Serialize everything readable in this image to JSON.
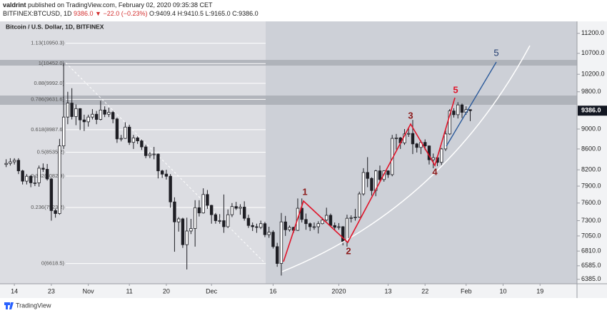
{
  "chart_data": {
    "type": "candlestick",
    "header": {
      "user": "valdrint",
      "published": " published on TradingView.com, February 02, 2020 09:35:38 CET",
      "symbol": "BITFINEX:BTCUSD, 1D",
      "change": " 9386.0 ▼ −22.0 (−0.23%)",
      "ohlc": " O:9409.4 H:9410.5 L:9165.0 C:9386.0"
    },
    "title": "Bitcoin / U.S. Dollar, 1D, BITFINEX",
    "log_scale": true,
    "up_color": "#ffffff",
    "down_color": "#1e1e24",
    "wick_color": "#1e1e24",
    "ylim": [
      6320,
      11510
    ],
    "yticks": [
      {
        "value": 6385,
        "label": "6385.0"
      },
      {
        "value": 6585,
        "label": "6585.0"
      },
      {
        "value": 6810,
        "label": "6810.0"
      },
      {
        "value": 7050,
        "label": "7050.0"
      },
      {
        "value": 7300,
        "label": "7300.0"
      },
      {
        "value": 7600,
        "label": "7600.0"
      },
      {
        "value": 7900,
        "label": "7900.0"
      },
      {
        "value": 8200,
        "label": "8200.0"
      },
      {
        "value": 8600,
        "label": "8600.0"
      },
      {
        "value": 9000,
        "label": "9000.0"
      },
      {
        "value": 9800,
        "label": "9800.0"
      },
      {
        "value": 10200,
        "label": "10200.0"
      },
      {
        "value": 10700,
        "label": "10700.0"
      },
      {
        "value": 11200,
        "label": "11200.0"
      }
    ],
    "xlim": [
      -1.5,
      139
    ],
    "xticks": [
      {
        "value": 2,
        "label": "14"
      },
      {
        "value": 11,
        "label": "23"
      },
      {
        "value": 20,
        "label": "Nov"
      },
      {
        "value": 30,
        "label": "11"
      },
      {
        "value": 39,
        "label": "20"
      },
      {
        "value": 50,
        "label": "Dec"
      },
      {
        "value": 65,
        "label": "16"
      },
      {
        "value": 81,
        "label": "2020"
      },
      {
        "value": 93,
        "label": "13"
      },
      {
        "value": 102,
        "label": "22"
      },
      {
        "value": 112,
        "label": "Feb"
      },
      {
        "value": 121,
        "label": "10"
      },
      {
        "value": 130,
        "label": "19"
      }
    ],
    "last_price": {
      "value": 9386,
      "label": "9386.0"
    },
    "fib_levels": [
      {
        "value": 10950.3,
        "label": "1.13(10950.3)"
      },
      {
        "value": 10452.0,
        "label": "1(10452.0)"
      },
      {
        "value": 9992.0,
        "label": "0.88(9992.0)"
      },
      {
        "value": 9631.6,
        "label": "0.786(9631.6)"
      },
      {
        "value": 8987.6,
        "label": "0.618(8987.6)"
      },
      {
        "value": 8535.2,
        "label": "0.5(8535.2)"
      },
      {
        "value": 8082.9,
        "label": "0.382(8082.9)"
      },
      {
        "value": 7523.2,
        "label": "0.236(7523.2)"
      },
      {
        "value": 6618.5,
        "label": "0(6618.5)"
      }
    ],
    "wave_labels": [
      "1",
      "2",
      "3",
      "4",
      "5",
      "5"
    ],
    "footer": "TradingView",
    "ohlc": [
      [
        8300,
        8400,
        8250,
        8320
      ],
      [
        8320,
        8420,
        8280,
        8350
      ],
      [
        8350,
        8420,
        8300,
        8380
      ],
      [
        8380,
        8420,
        8120,
        8180
      ],
      [
        8180,
        8200,
        7930,
        7990
      ],
      [
        7990,
        8120,
        7930,
        8080
      ],
      [
        8080,
        8100,
        7880,
        7960
      ],
      [
        7960,
        8100,
        7900,
        7960
      ],
      [
        7960,
        8280,
        7890,
        8230
      ],
      [
        8230,
        8320,
        8160,
        8210
      ],
      [
        8210,
        8310,
        8000,
        8030
      ],
      [
        8030,
        8050,
        7300,
        7470
      ],
      [
        7470,
        7500,
        7350,
        7420
      ],
      [
        7420,
        8800,
        7400,
        8660
      ],
      [
        8660,
        10460,
        8600,
        9250
      ],
      [
        9250,
        9800,
        9100,
        9550
      ],
      [
        9550,
        9880,
        9200,
        9260
      ],
      [
        9260,
        9520,
        9080,
        9430
      ],
      [
        9430,
        9440,
        8980,
        9190
      ],
      [
        9190,
        9300,
        8960,
        9150
      ],
      [
        9150,
        9300,
        9050,
        9250
      ],
      [
        9250,
        9420,
        9200,
        9310
      ],
      [
        9310,
        9380,
        9100,
        9200
      ],
      [
        9200,
        9600,
        9180,
        9400
      ],
      [
        9400,
        9480,
        9250,
        9310
      ],
      [
        9310,
        9450,
        9250,
        9350
      ],
      [
        9350,
        9380,
        9120,
        9210
      ],
      [
        9210,
        9240,
        8720,
        8800
      ],
      [
        8800,
        8880,
        8750,
        8810
      ],
      [
        8810,
        9140,
        8800,
        9040
      ],
      [
        9040,
        9090,
        8680,
        8730
      ],
      [
        8730,
        8880,
        8600,
        8820
      ],
      [
        8820,
        8850,
        8700,
        8760
      ],
      [
        8760,
        8790,
        8580,
        8640
      ],
      [
        8640,
        8680,
        8420,
        8470
      ],
      [
        8470,
        8540,
        8420,
        8500
      ],
      [
        8500,
        8640,
        8400,
        8500
      ],
      [
        8500,
        8510,
        8040,
        8180
      ],
      [
        8180,
        8200,
        8050,
        8120
      ],
      [
        8120,
        8200,
        8020,
        8080
      ],
      [
        8080,
        8120,
        7520,
        7620
      ],
      [
        7620,
        7700,
        6800,
        7280
      ],
      [
        7280,
        7360,
        7120,
        7330
      ],
      [
        7330,
        7350,
        6860,
        6910
      ],
      [
        6910,
        7350,
        6530,
        7130
      ],
      [
        7130,
        7330,
        7080,
        7170
      ],
      [
        7170,
        7650,
        6880,
        7520
      ],
      [
        7520,
        7650,
        7370,
        7430
      ],
      [
        7430,
        7860,
        7420,
        7750
      ],
      [
        7750,
        7830,
        7500,
        7560
      ],
      [
        7560,
        7570,
        7250,
        7400
      ],
      [
        7400,
        7430,
        7250,
        7300
      ],
      [
        7300,
        7410,
        7250,
        7300
      ],
      [
        7300,
        7750,
        7100,
        7200
      ],
      [
        7200,
        7490,
        7180,
        7400
      ],
      [
        7400,
        7600,
        7360,
        7540
      ],
      [
        7540,
        7620,
        7480,
        7510
      ],
      [
        7510,
        7580,
        7400,
        7530
      ],
      [
        7530,
        7630,
        7300,
        7340
      ],
      [
        7340,
        7400,
        7180,
        7220
      ],
      [
        7220,
        7270,
        7130,
        7200
      ],
      [
        7200,
        7250,
        7100,
        7190
      ],
      [
        7190,
        7300,
        7160,
        7250
      ],
      [
        7250,
        7280,
        7030,
        7070
      ],
      [
        7070,
        7200,
        7020,
        7110
      ],
      [
        7110,
        7140,
        6850,
        6880
      ],
      [
        6880,
        6940,
        6570,
        6620
      ],
      [
        6620,
        7430,
        6440,
        7280
      ],
      [
        7280,
        7380,
        7050,
        7150
      ],
      [
        7150,
        7220,
        7120,
        7190
      ],
      [
        7190,
        7200,
        7100,
        7140
      ],
      [
        7140,
        7680,
        7130,
        7510
      ],
      [
        7510,
        7680,
        7270,
        7320
      ],
      [
        7320,
        7420,
        7150,
        7250
      ],
      [
        7250,
        7270,
        7130,
        7200
      ],
      [
        7200,
        7270,
        7150,
        7200
      ],
      [
        7200,
        7290,
        7090,
        7250
      ],
      [
        7250,
        7350,
        7240,
        7310
      ],
      [
        7310,
        7520,
        7290,
        7390
      ],
      [
        7390,
        7420,
        7200,
        7220
      ],
      [
        7220,
        7270,
        7140,
        7190
      ],
      [
        7190,
        7260,
        7150,
        7200
      ],
      [
        7200,
        7210,
        6900,
        6960
      ],
      [
        6960,
        7400,
        6880,
        7340
      ],
      [
        7340,
        7390,
        7270,
        7350
      ],
      [
        7350,
        7500,
        7300,
        7360
      ],
      [
        7360,
        7800,
        7350,
        7760
      ],
      [
        7760,
        8230,
        7730,
        8150
      ],
      [
        8150,
        8440,
        7880,
        8040
      ],
      [
        8040,
        8060,
        7730,
        7820
      ],
      [
        7820,
        8200,
        7720,
        8180
      ],
      [
        8180,
        8280,
        7980,
        8020
      ],
      [
        8020,
        8190,
        7980,
        8180
      ],
      [
        8180,
        8190,
        8050,
        8110
      ],
      [
        8110,
        8880,
        8080,
        8810
      ],
      [
        8810,
        8900,
        8590,
        8820
      ],
      [
        8820,
        8840,
        8600,
        8720
      ],
      [
        8720,
        9000,
        8680,
        8900
      ],
      [
        8900,
        9020,
        8840,
        8910
      ],
      [
        8910,
        9190,
        8500,
        8700
      ],
      [
        8700,
        8720,
        8530,
        8630
      ],
      [
        8630,
        8770,
        8500,
        8730
      ],
      [
        8730,
        8790,
        8580,
        8660
      ],
      [
        8660,
        8670,
        8300,
        8390
      ],
      [
        8390,
        8510,
        8230,
        8430
      ],
      [
        8430,
        8450,
        8270,
        8340
      ],
      [
        8340,
        8620,
        8290,
        8600
      ],
      [
        8600,
        8980,
        8560,
        8900
      ],
      [
        8900,
        9420,
        8880,
        9380
      ],
      [
        9380,
        9440,
        9240,
        9300
      ],
      [
        9300,
        9570,
        9220,
        9510
      ],
      [
        9510,
        9540,
        9230,
        9350
      ],
      [
        9350,
        9480,
        9300,
        9409.4
      ],
      [
        9409.4,
        9410.5,
        9165,
        9386
      ]
    ]
  }
}
